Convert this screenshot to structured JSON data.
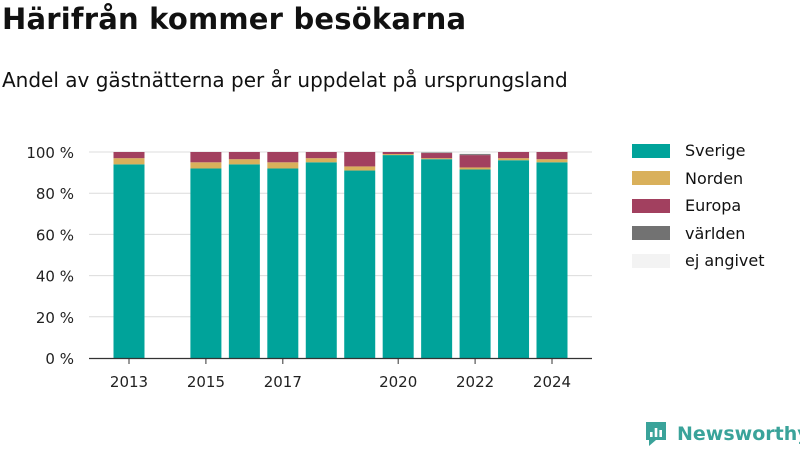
{
  "header": {
    "title": "Härifrån kommer besökarna",
    "subtitle": "Andel av gästnätterna per år uppdelat på ursprungsland"
  },
  "brand": {
    "name": "Newsworthy",
    "icon": "newsworthy-logo-icon",
    "color": "#3aa39a"
  },
  "chart_data": {
    "type": "bar",
    "stacked": true,
    "categories": [
      2013,
      2015,
      2016,
      2017,
      2018,
      2019,
      2020,
      2021,
      2022,
      2023,
      2024
    ],
    "x_ticks": [
      "2013",
      "2015",
      "2017",
      "2020",
      "2022",
      "2024"
    ],
    "y_ticks": [
      "0 %",
      "20 %",
      "40 %",
      "60 %",
      "80 %",
      "100 %"
    ],
    "ylim": [
      0,
      100
    ],
    "grid": true,
    "legend_position": "right",
    "series": [
      {
        "name": "Sverige",
        "color": "#00a39a",
        "values": [
          94,
          92,
          94,
          92,
          95,
          91,
          98.5,
          96.5,
          91.5,
          96,
          95
        ]
      },
      {
        "name": "Norden",
        "color": "#d9b05b",
        "values": [
          3,
          3,
          2.5,
          3,
          2,
          2,
          0.5,
          0.5,
          1,
          1,
          1.5
        ]
      },
      {
        "name": "Europa",
        "color": "#a2405f",
        "values": [
          3,
          5,
          3.5,
          5,
          3,
          7,
          1,
          2.5,
          6,
          3,
          3.5
        ]
      },
      {
        "name": "världen",
        "color": "#727272",
        "values": [
          0,
          0,
          0,
          0,
          0,
          0,
          0,
          0.3,
          0.5,
          0,
          0
        ]
      },
      {
        "name": "ej angivet",
        "color": "#f3f3f3",
        "values": [
          0,
          0,
          0,
          0,
          0,
          0,
          0,
          0.2,
          1,
          0,
          0
        ]
      }
    ]
  }
}
